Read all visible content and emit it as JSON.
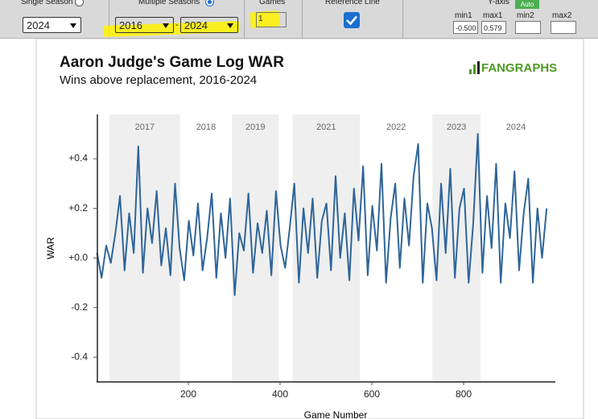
{
  "toolbar": {
    "single_season": {
      "label": "Single Season",
      "value": "2024"
    },
    "multiple_seasons": {
      "label": "Multiple Seasons",
      "from": "2016",
      "separator": "-",
      "to": "2024"
    },
    "games": {
      "label": "Games",
      "value": "1"
    },
    "reference_line": {
      "label": "Reference Line"
    },
    "y_axis": {
      "label": "Y-axis",
      "button": "Auto",
      "fields": [
        {
          "label": "min1",
          "value": "-0.500"
        },
        {
          "label": "max1",
          "value": "0.579"
        },
        {
          "label": "min2"
        },
        {
          "label": "max2"
        }
      ]
    }
  },
  "logo": "FANGRAPHS",
  "chart_data": {
    "type": "line",
    "title": "Aaron Judge's Game Log WAR",
    "subtitle": "Wins above replacement, 2016-2024",
    "x_label": "Game Number",
    "y_label": "WAR",
    "x": [
      1,
      11,
      21,
      31,
      41,
      51,
      61,
      71,
      81,
      91,
      101,
      111,
      121,
      131,
      141,
      151,
      161,
      171,
      181,
      191,
      201,
      211,
      221,
      231,
      241,
      251,
      261,
      271,
      281,
      291,
      301,
      311,
      321,
      331,
      341,
      351,
      361,
      371,
      381,
      391,
      401,
      411,
      421,
      431,
      441,
      451,
      461,
      471,
      481,
      491,
      501,
      511,
      521,
      531,
      541,
      551,
      561,
      571,
      581,
      591,
      601,
      611,
      621,
      631,
      641,
      651,
      661,
      671,
      681,
      691,
      701,
      711,
      721,
      731,
      741,
      751,
      761,
      771,
      781,
      791,
      801,
      811,
      821,
      831,
      841,
      851,
      861,
      871,
      881,
      891,
      901,
      911,
      921,
      931,
      941,
      951,
      961,
      971,
      981
    ],
    "series": [
      {
        "color": "#2f6599",
        "values": [
          0.02,
          -0.08,
          0.05,
          -0.02,
          0.1,
          0.25,
          -0.05,
          0.18,
          0.02,
          0.45,
          -0.06,
          0.2,
          0.06,
          0.27,
          -0.03,
          0.12,
          -0.07,
          0.3,
          0.04,
          -0.09,
          0.15,
          0.01,
          0.22,
          -0.05,
          0.08,
          0.26,
          -0.08,
          0.18,
          0.0,
          0.24,
          -0.15,
          0.1,
          0.03,
          0.26,
          -0.06,
          0.14,
          0.02,
          0.19,
          -0.07,
          0.27,
          0.05,
          -0.04,
          0.12,
          0.3,
          -0.1,
          0.2,
          0.02,
          0.24,
          -0.08,
          0.15,
          0.22,
          -0.05,
          0.33,
          0.0,
          0.18,
          -0.09,
          0.28,
          0.07,
          0.37,
          -0.07,
          0.21,
          0.03,
          0.38,
          -0.1,
          0.16,
          0.3,
          -0.04,
          0.24,
          0.05,
          0.33,
          0.46,
          -0.1,
          0.22,
          0.12,
          -0.09,
          0.3,
          0.02,
          0.36,
          -0.08,
          0.2,
          0.28,
          -0.1,
          0.14,
          0.5,
          -0.06,
          0.25,
          0.04,
          0.38,
          -0.1,
          0.22,
          0.08,
          0.35,
          -0.05,
          0.18,
          0.32,
          -0.1,
          0.2,
          0.0,
          0.2
        ]
      }
    ],
    "xlim": [
      0,
      1000
    ],
    "xticks": [
      200,
      400,
      600,
      800
    ],
    "ylim": [
      -0.5,
      0.579
    ],
    "yticks": [
      {
        "value": -0.4,
        "label": "-0.4"
      },
      {
        "value": -0.2,
        "label": "-0.2"
      },
      {
        "value": 0,
        "label": "+0.0"
      },
      {
        "value": 0.2,
        "label": "+0.2"
      },
      {
        "value": 0.4,
        "label": "+0.4"
      }
    ],
    "seasons": [
      {
        "label": null,
        "start": 0,
        "end": 28,
        "shaded": false
      },
      {
        "label": "2017",
        "start": 28,
        "end": 182,
        "shaded": true
      },
      {
        "label": "2018",
        "start": 182,
        "end": 295,
        "shaded": false
      },
      {
        "label": "2019",
        "start": 295,
        "end": 397,
        "shaded": true
      },
      {
        "label": null,
        "start": 397,
        "end": 427,
        "shaded": false
      },
      {
        "label": "2021",
        "start": 427,
        "end": 574,
        "shaded": true
      },
      {
        "label": "2022",
        "start": 574,
        "end": 732,
        "shaded": false
      },
      {
        "label": "2023",
        "start": 732,
        "end": 837,
        "shaded": true
      },
      {
        "label": "2024",
        "start": 837,
        "end": 991,
        "shaded": false
      }
    ]
  }
}
